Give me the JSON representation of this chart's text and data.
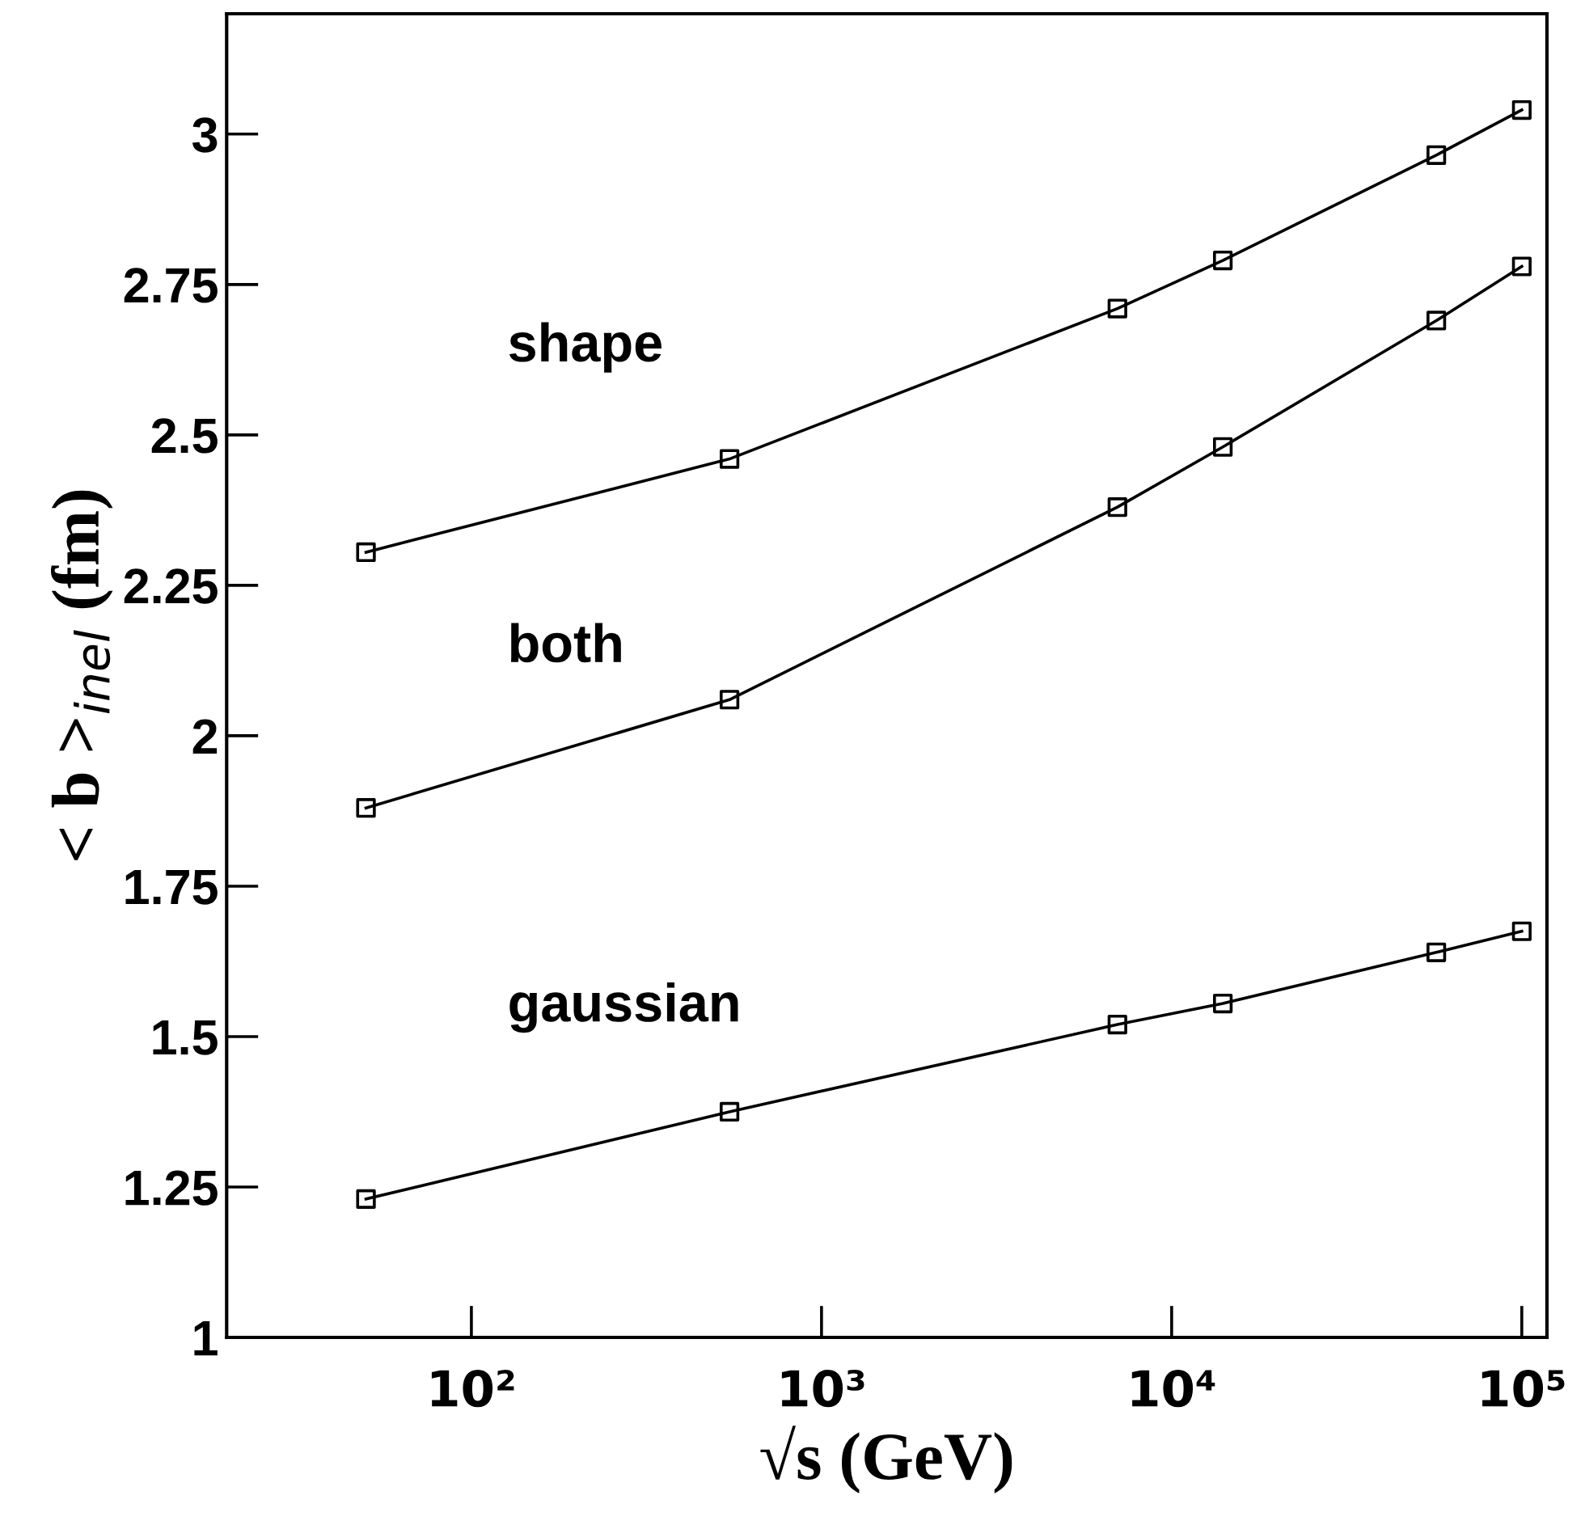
{
  "chart_data": {
    "type": "line",
    "xlabel": "√s (GeV)",
    "ylabel": "< b >$_{inel}$ (fm)",
    "log": "x",
    "x": [
      50,
      546,
      7000,
      14000,
      57000,
      100000
    ],
    "series": [
      {
        "name": "shape",
        "color": "#000000",
        "values": [
          2.305,
          2.46,
          2.71,
          2.79,
          2.965,
          3.04
        ]
      },
      {
        "name": "both",
        "color": "#000000",
        "values": [
          1.88,
          2.06,
          2.38,
          2.48,
          2.69,
          2.78
        ]
      },
      {
        "name": "gaussian",
        "color": "#000000",
        "values": [
          1.23,
          1.375,
          1.52,
          1.555,
          1.64,
          1.675
        ]
      }
    ],
    "xlim": [
      20,
      118000
    ],
    "xticks": [
      {
        "value": 100,
        "label": "10²"
      },
      {
        "value": 1000,
        "label": "10³"
      },
      {
        "value": 10000,
        "label": "10⁴"
      },
      {
        "value": 100000,
        "label": "10⁵"
      }
    ],
    "ylim": [
      1,
      3.2
    ],
    "yticks": [
      1,
      1.25,
      1.5,
      1.75,
      2,
      2.25,
      2.5,
      2.75,
      3
    ],
    "marker": "square",
    "line_style": "solid",
    "grid": false,
    "legend": false
  }
}
